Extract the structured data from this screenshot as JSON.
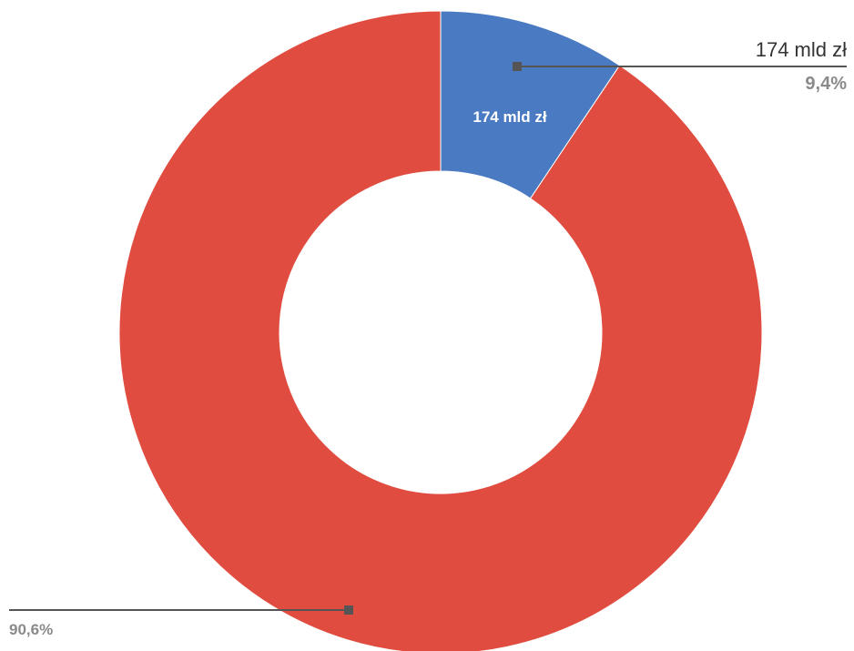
{
  "chart_data": {
    "type": "pie",
    "donut": true,
    "slices": [
      {
        "value_label": "174 mld zł",
        "percent": 9.4,
        "percent_label": "9,4%",
        "color": "#4a7ac1",
        "inner_label": "174 mld zł"
      },
      {
        "value_label": "",
        "percent": 90.6,
        "percent_label": "90,6%",
        "color": "#e04d40",
        "inner_label": ""
      }
    ],
    "legend": "none"
  }
}
